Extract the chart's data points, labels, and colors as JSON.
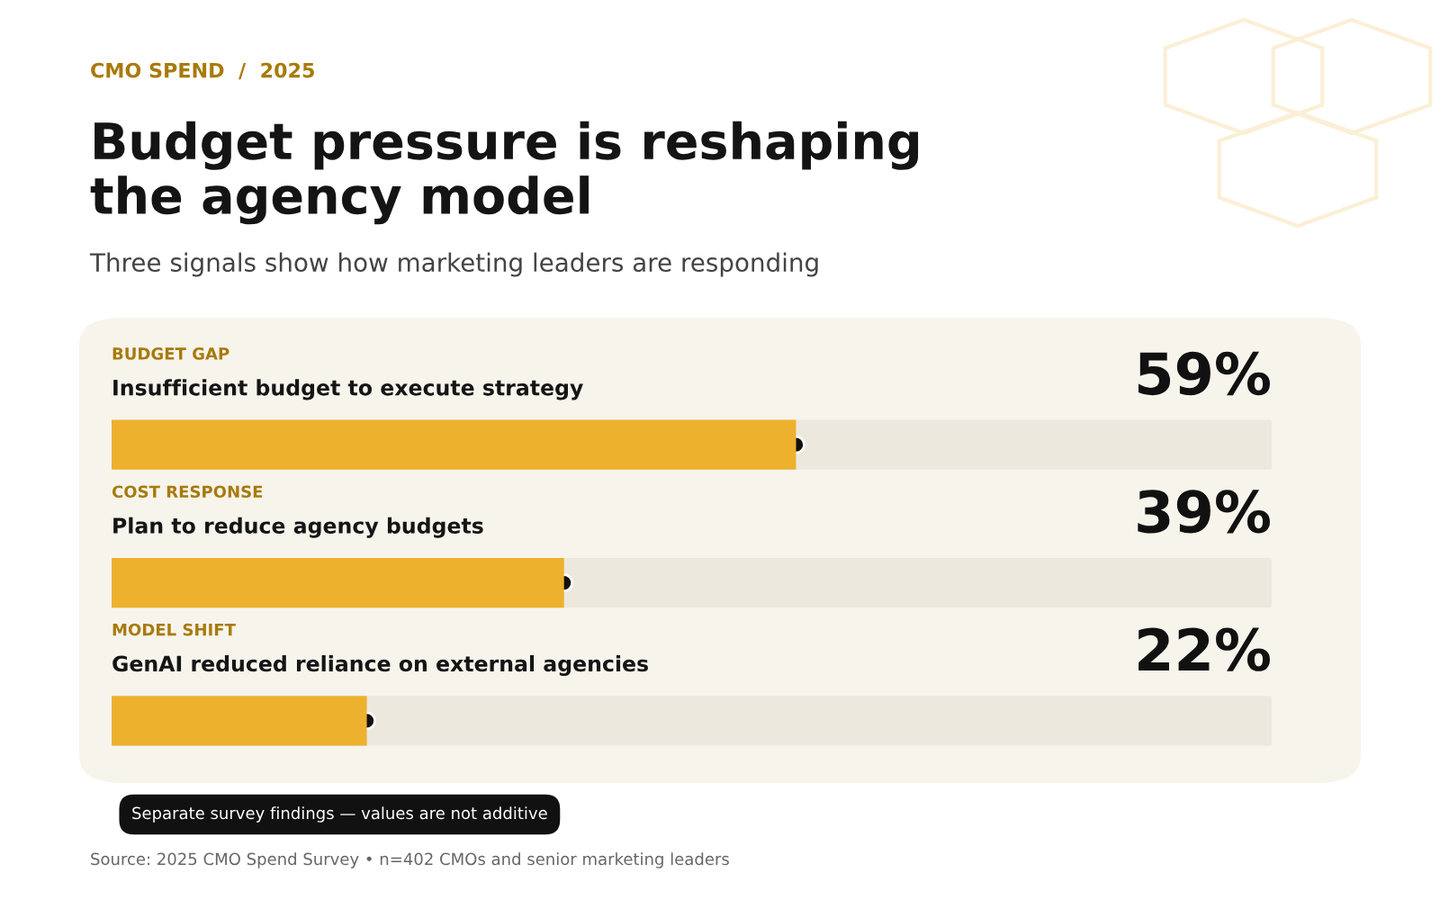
{
  "chart_data": {
    "type": "bar",
    "orientation": "horizontal",
    "title": "Budget pressure is reshaping\nthe agency model",
    "subtitle": "Three signals show how marketing leaders are responding",
    "categories": [
      "Insufficient budget to execute strategy",
      "Plan to reduce agency budgets",
      "GenAI reduced reliance on external agencies"
    ],
    "values": [
      59,
      39,
      22
    ],
    "value_labels": [
      "59%",
      "39%",
      "22%"
    ],
    "color": "#edb12e",
    "xlim": [
      0,
      100
    ],
    "grid": false,
    "legend": false,
    "annotations": [
      {
        "text": "CMO SPEND  /  2025"
      },
      {
        "text": "BUDGET GAP"
      },
      {
        "text": "COST RESPONSE"
      },
      {
        "text": "MODEL SHIFT"
      },
      {
        "text": "Separate survey findings — values are not additive"
      },
      {
        "text": "Source: 2025 CMO Spend Survey • n=402 CMOs and senior marketing leaders"
      }
    ]
  }
}
